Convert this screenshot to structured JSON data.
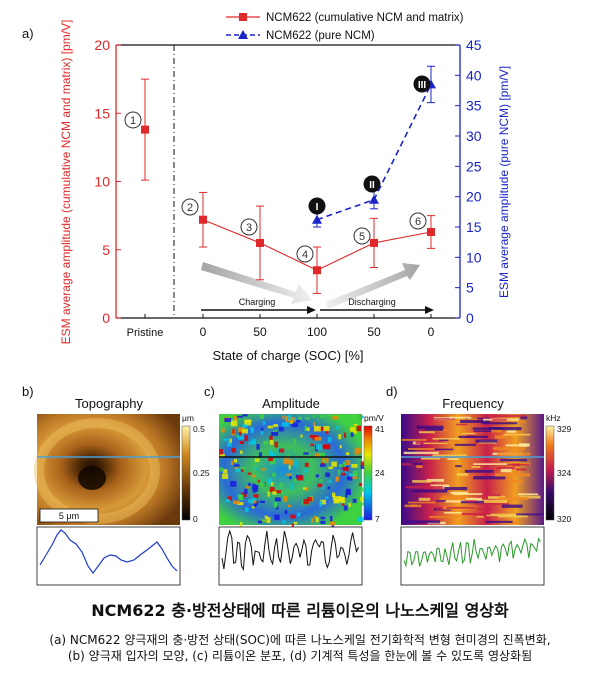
{
  "panel_a": {
    "label": "a)",
    "left_axis_label": "ESM average amplitude (cumulative NCM and matrix) [pm/V]",
    "right_axis_label": "ESM average amplitude (pure NCM) [pm/V]",
    "xlabel": "State of charge (SOC) [%]",
    "x_ticks": [
      "Pristine",
      "0",
      "50",
      "100",
      "50",
      "0"
    ],
    "left_ticks": [
      "0",
      "5",
      "10",
      "15",
      "20"
    ],
    "right_ticks": [
      "0",
      "5",
      "10",
      "15",
      "20",
      "25",
      "30",
      "35",
      "40",
      "45"
    ],
    "charging_label": "Charging",
    "discharging_label": "Discharging",
    "circle_markers": [
      "1",
      "2",
      "3",
      "4",
      "5",
      "6"
    ],
    "black_markers": [
      "I",
      "II",
      "III"
    ],
    "colors": {
      "red": "#e0292b",
      "blue": "#1a24c8"
    }
  },
  "chart_data": {
    "type": "line",
    "categories": [
      "Pristine",
      "0",
      "50",
      "100",
      "50",
      "0"
    ],
    "series": [
      {
        "name": "NCM622 (cumulative NCM and matrix)",
        "axis": "left",
        "values": [
          13.8,
          7.2,
          5.5,
          3.5,
          5.5,
          6.3
        ],
        "errors": [
          3.7,
          2.0,
          2.7,
          1.7,
          1.8,
          1.2
        ],
        "connected": [
          false,
          true,
          true,
          true,
          true,
          true
        ]
      },
      {
        "name": "NCM622 (pure NCM)",
        "axis": "right",
        "values": [
          null,
          null,
          null,
          16.2,
          19.5,
          38.5
        ],
        "errors": [
          null,
          null,
          null,
          1.2,
          1.5,
          3.0
        ]
      }
    ],
    "ylim_left": [
      0,
      20
    ],
    "ylim_right": [
      0,
      45
    ]
  },
  "panels": {
    "b": {
      "label": "b)",
      "title": "Topography",
      "unit": "μm",
      "scale_ticks": [
        "0.5",
        "0.25",
        "0"
      ],
      "scalebar": "5 μm"
    },
    "c": {
      "label": "c)",
      "title": "Amplitude",
      "unit": "pm/V",
      "scale_ticks": [
        "41",
        "24",
        "7"
      ]
    },
    "d": {
      "label": "d)",
      "title": "Frequency",
      "unit": "kHz",
      "scale_ticks": [
        "329",
        "324",
        "320"
      ]
    }
  },
  "caption": {
    "title": "NCM622 충·방전상태에 따른 리튬이온의 나노스케일 영상화",
    "body": "(a) NCM622 양극재의 충·방전 상태(SOC)에 따른 나노스케일 전기화학적 변형 현미경의 진폭변화, (b) 양극재 입자의 모양, (c) 리튬이온 분포, (d) 기계적 특성을 한눈에 볼 수 있도록 영상화됨"
  }
}
